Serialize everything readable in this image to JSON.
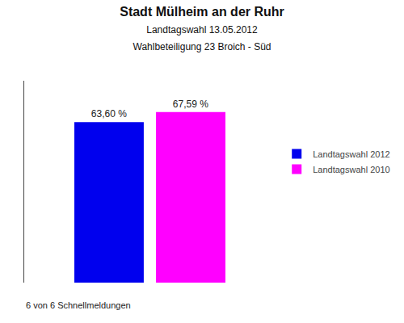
{
  "chart_data": {
    "type": "bar",
    "title": "Stadt Mülheim an der Ruhr",
    "subtitle": [
      "Landtagswahl 13.05.2012",
      "Wahlbeteiligung 23 Broich - Süd"
    ],
    "categories": [
      null
    ],
    "series": [
      {
        "name": "Landtagswahl 2012",
        "color": "#0000ee",
        "values": [
          63.6
        ],
        "value_labels": [
          "63,60 %"
        ]
      },
      {
        "name": "Landtagswahl 2010",
        "color": "#ff00ff",
        "values": [
          67.59
        ],
        "value_labels": [
          "67,59 %"
        ]
      }
    ],
    "ylim": [
      0,
      80
    ],
    "grid": false,
    "tick_labels": false,
    "data_labels": true,
    "legend": "right",
    "annotations": [
      "6 von 6 Schnellmeldungen"
    ]
  }
}
